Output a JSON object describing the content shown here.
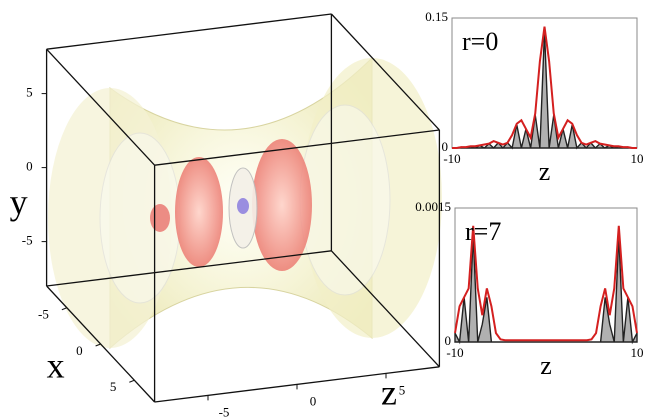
{
  "chart_data": [
    {
      "type": "isosurface",
      "xlabel": "x",
      "ylabel": "y",
      "zlabel": "z",
      "xlim": [
        -8,
        8
      ],
      "ylim": [
        -8,
        8
      ],
      "zlim": [
        -8,
        8
      ],
      "xticks": [
        -5,
        0,
        5
      ],
      "yticks": [
        -5,
        0,
        5
      ],
      "zticks": [
        -5,
        0,
        5
      ]
    },
    {
      "type": "line",
      "title": "r=0",
      "xlabel": "z",
      "x": [
        -10,
        -9.5,
        -9,
        -8.5,
        -8,
        -7.5,
        -7,
        -6.5,
        -6,
        -5.5,
        -5,
        -4.5,
        -4,
        -3.5,
        -3,
        -2.5,
        -2,
        -1.5,
        -1,
        -0.5,
        0,
        0.5,
        1,
        1.5,
        2,
        2.5,
        3,
        3.5,
        4,
        4.5,
        5,
        5.5,
        6,
        6.5,
        7,
        7.5,
        8,
        8.5,
        9,
        9.5,
        10
      ],
      "xlim": [
        -10,
        10
      ],
      "xticks": [
        -10,
        10
      ],
      "ylim": [
        0,
        0.15
      ],
      "yticks": [
        0,
        0.15
      ],
      "series": [
        {
          "color": "#222222",
          "fill": "#b0b0b0",
          "values": [
            0,
            0,
            0.001,
            0,
            0.002,
            0,
            0.003,
            0,
            0.005,
            0,
            0.006,
            0,
            0.006,
            0,
            0.027,
            0,
            0.022,
            0,
            0.038,
            0,
            0.135,
            0,
            0.038,
            0,
            0.022,
            0,
            0.027,
            0,
            0.006,
            0,
            0.006,
            0,
            0.005,
            0,
            0.003,
            0,
            0.002,
            0,
            0.001,
            0,
            0
          ]
        },
        {
          "color": "#d42020",
          "values": [
            0,
            0,
            0.001,
            0.001,
            0.002,
            0.002,
            0.003,
            0.004,
            0.005,
            0.008,
            0.006,
            0.004,
            0.006,
            0.015,
            0.028,
            0.032,
            0.022,
            0.012,
            0.04,
            0.1,
            0.14,
            0.1,
            0.04,
            0.012,
            0.022,
            0.032,
            0.028,
            0.015,
            0.006,
            0.004,
            0.006,
            0.008,
            0.005,
            0.004,
            0.003,
            0.002,
            0.002,
            0.001,
            0.001,
            0,
            0
          ]
        }
      ]
    },
    {
      "type": "line",
      "title": "r=7",
      "xlabel": "z",
      "x": [
        -10,
        -9.5,
        -9,
        -8.5,
        -8,
        -7.5,
        -7,
        -6.5,
        -6,
        -5.5,
        -5,
        -4.5,
        -4,
        -3.5,
        -3,
        -2.5,
        -2,
        -1.5,
        -1,
        -0.5,
        0,
        0.5,
        1,
        1.5,
        2,
        2.5,
        3,
        3.5,
        4,
        4.5,
        5,
        5.5,
        6,
        6.5,
        7,
        7.5,
        8,
        8.5,
        9,
        9.5,
        10
      ],
      "xlim": [
        -10,
        10
      ],
      "xticks": [
        -10,
        10
      ],
      "ylim": [
        0,
        0.0015
      ],
      "yticks": [
        0,
        0.0015
      ],
      "series": [
        {
          "color": "#222222",
          "fill": "#b0b0b0",
          "values": [
            0.0001,
            0,
            0.0005,
            0,
            0.0012,
            0,
            0.0002,
            0.0005,
            0,
            0,
            0,
            0,
            0,
            0,
            0,
            0,
            0,
            0,
            0,
            0,
            0,
            0,
            0,
            0,
            0,
            0,
            0,
            0,
            0,
            0,
            0,
            0,
            0,
            0.0005,
            0.0002,
            0,
            0.0012,
            0,
            0.0005,
            0,
            0.0001
          ]
        },
        {
          "color": "#d42020",
          "values": [
            0.0001,
            0.0004,
            0.0005,
            0.0006,
            0.0013,
            0.0006,
            0.0003,
            0.0006,
            0.0004,
            0.0001,
            3e-05,
            2e-05,
            2e-05,
            2e-05,
            2e-05,
            2e-05,
            2e-05,
            2e-05,
            2e-05,
            2e-05,
            2e-05,
            2e-05,
            2e-05,
            2e-05,
            2e-05,
            2e-05,
            2e-05,
            2e-05,
            2e-05,
            2e-05,
            3e-05,
            0.0001,
            0.0004,
            0.0006,
            0.0003,
            0.0006,
            0.0013,
            0.0006,
            0.0005,
            0.0004,
            0.0001
          ]
        }
      ]
    }
  ]
}
